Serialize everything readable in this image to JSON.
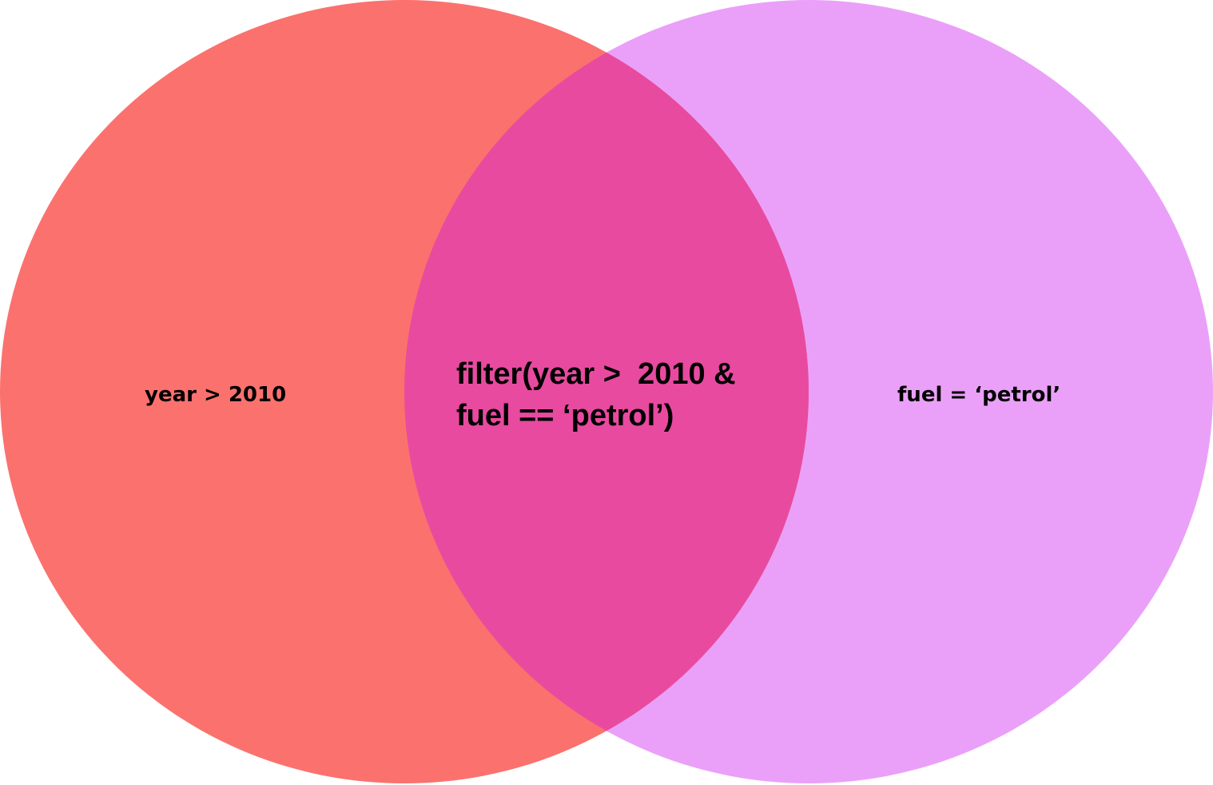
{
  "colors": {
    "left_set": "#fb716e",
    "right_set": "#eaa0f8",
    "intersection": "#e84aa0",
    "background": "#ffffff"
  },
  "venn": {
    "left_label": "year > 2010",
    "right_label": "fuel =  ‘petrol’",
    "intersection_lines": [
      "filter(year >  2010 &",
      "fuel == ‘petrol’)"
    ]
  }
}
